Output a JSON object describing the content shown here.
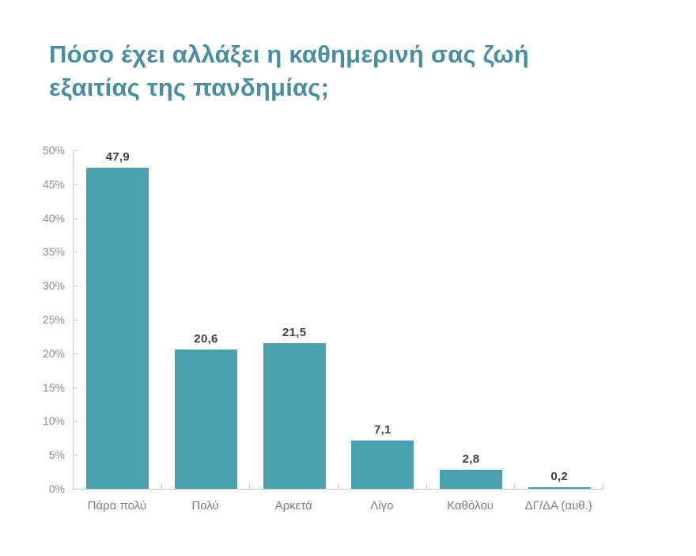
{
  "header": {
    "title": "Πόσο έχει αλλάξει η καθημερινή σας ζωή εξαιτίας της πανδημίας;",
    "title_lines": [
      "Πόσο έχει αλλάξει η καθημερινή σας ζωή",
      "εξαιτίας της πανδημίας;"
    ]
  },
  "chart_data": {
    "type": "bar",
    "title": "Πόσο έχει αλλάξει η καθημερινή σας ζωή εξαιτίας της πανδημίας;",
    "categories": [
      "Πάρα πολύ",
      "Πολύ",
      "Αρκετά",
      "Λίγο",
      "Καθόλου",
      "ΔΓ/ΔΑ (αυθ.)"
    ],
    "values": [
      47.9,
      20.6,
      21.5,
      7.1,
      2.8,
      0.2
    ],
    "value_labels": [
      "47,9",
      "20,6",
      "21,5",
      "7,1",
      "2,8",
      "0,2"
    ],
    "xlabel": "",
    "ylabel": "",
    "ylim": [
      0,
      50
    ],
    "ytick_step": 5,
    "ytick_labels": [
      "0%",
      "5%",
      "10%",
      "15%",
      "20%",
      "25%",
      "30%",
      "35%",
      "40%",
      "45%",
      "50%"
    ],
    "grid": false,
    "legend": false
  },
  "colors": {
    "background": "#FFFFFF",
    "bar": "#4BA1AD",
    "title": "#4A8DA0",
    "axis": "#C9C9C9",
    "tick_label": "#8C8C8C",
    "category_label": "#7D7D7D",
    "value_label": "#3F3F3F"
  }
}
